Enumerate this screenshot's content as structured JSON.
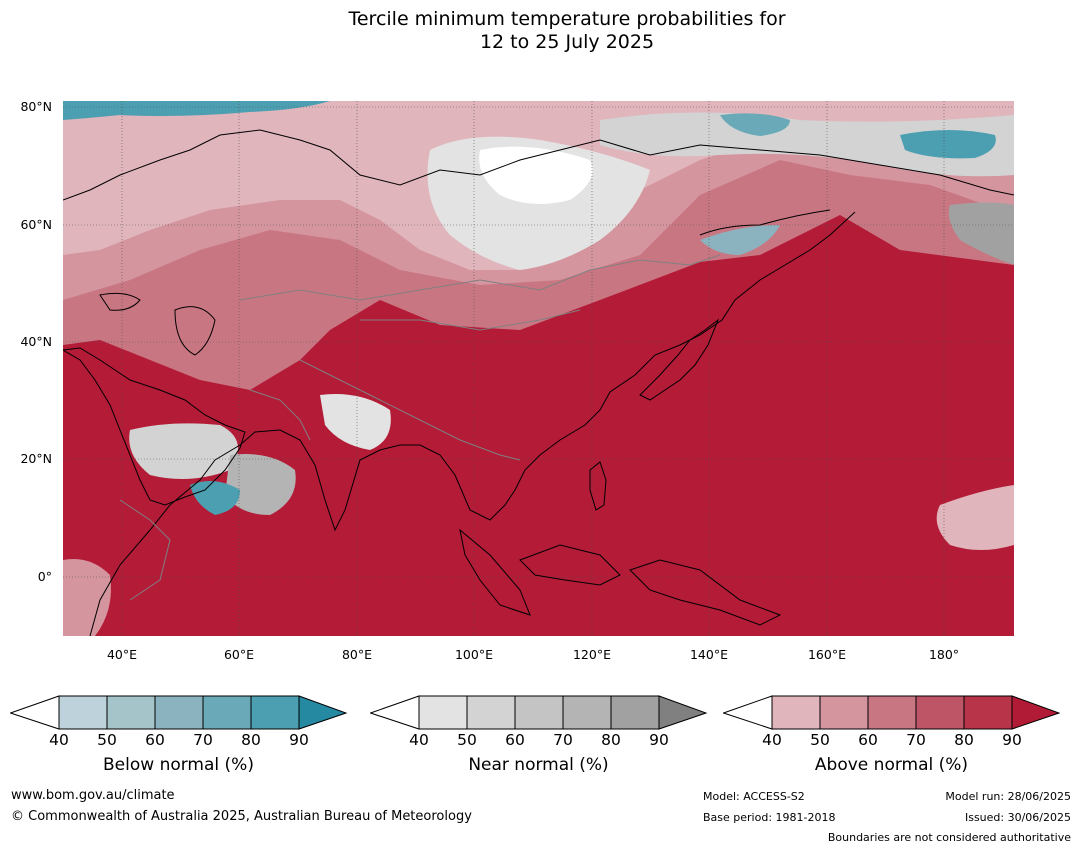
{
  "title": {
    "line1": "Tercile minimum temperature probabilities for",
    "line2": "12 to 25 July 2025"
  },
  "map": {
    "latitude_labels": [
      "80°N",
      "60°N",
      "40°N",
      "20°N",
      "0°"
    ],
    "longitude_labels": [
      "40°E",
      "60°E",
      "80°E",
      "100°E",
      "120°E",
      "140°E",
      "160°E",
      "180°"
    ],
    "extent": {
      "lon_min": 30,
      "lon_max": 192,
      "lat_min": -10,
      "lat_max": 81
    },
    "coastline_color": "#000000",
    "boundary_color": "#808080",
    "dominant_category": "Above normal",
    "dominant_color": "#b31b37"
  },
  "colorbars": [
    {
      "label": "Below normal (%)",
      "ticks": [
        "40",
        "50",
        "60",
        "70",
        "80",
        "90"
      ],
      "colors": [
        "#ffffff",
        "#bdd2da",
        "#a5c4ca",
        "#8bb3bf",
        "#6aa9b7",
        "#4b9fb1",
        "#2589a1"
      ]
    },
    {
      "label": "Near normal (%)",
      "ticks": [
        "40",
        "50",
        "60",
        "70",
        "80",
        "90"
      ],
      "colors": [
        "#ffffff",
        "#e3e3e3",
        "#d3d3d3",
        "#c4c4c4",
        "#b4b4b4",
        "#a1a1a1",
        "#808080"
      ]
    },
    {
      "label": "Above normal (%)",
      "ticks": [
        "40",
        "50",
        "60",
        "70",
        "80",
        "90"
      ],
      "colors": [
        "#ffffff",
        "#e0b5bc",
        "#d4959f",
        "#c97683",
        "#be5566",
        "#b83449",
        "#b11b36"
      ]
    }
  ],
  "footer": {
    "website": "www.bom.gov.au/climate",
    "copyright": "© Commonwealth of Australia 2025, Australian Bureau of Meteorology",
    "model": "Model: ACCESS-S2",
    "base_period": "Base period: 1981-2018",
    "model_run": "Model run: 28/06/2025",
    "issued": "Issued: 30/06/2025",
    "disclaimer": "Boundaries are not considered authoritative"
  }
}
